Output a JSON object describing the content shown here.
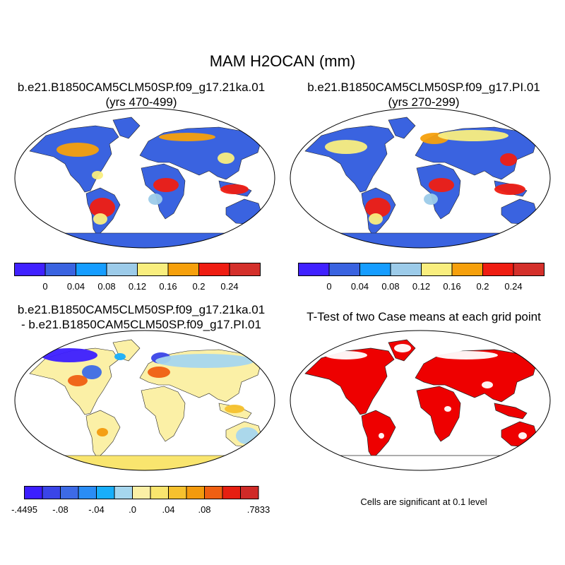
{
  "title": "MAM H2OCAN (mm)",
  "panels": [
    {
      "id": "p1",
      "title": "b.e21.B1850CAM5CLM50SP.f09_g17.21ka.01",
      "subtitle": "(yrs 470-499)"
    },
    {
      "id": "p2",
      "title": "b.e21.B1850CAM5CLM50SP.f09_g17.PI.01",
      "subtitle": "(yrs 270-299)"
    },
    {
      "id": "p3",
      "title": "b.e21.B1850CAM5CLM50SP.f09_g17.21ka.01",
      "subtitle": "- b.e21.B1850CAM5CLM50SP.f09_g17.PI.01"
    },
    {
      "id": "p4",
      "title": "T-Test of two Case means at each grid point",
      "subtitle": ""
    }
  ],
  "colorbar_abs": {
    "colors": [
      "#4021ff",
      "#3a63e0",
      "#169dff",
      "#9ccbe9",
      "#f9ee7e",
      "#f6a00c",
      "#ef1d12",
      "#d4302b"
    ],
    "labels": [
      "0",
      "0.04",
      "0.08",
      "0.12",
      "0.16",
      "0.2",
      "0.24"
    ]
  },
  "colorbar_diff": {
    "colors": [
      "#3c1eff",
      "#3a45e8",
      "#3d6ae6",
      "#2a8df5",
      "#18aefa",
      "#a6d6ee",
      "#fbf0a6",
      "#f9e56e",
      "#f6c12e",
      "#f39a0d",
      "#ef5f12",
      "#e61f11",
      "#cf2a27"
    ],
    "labels": [
      "-.4495",
      "-.08",
      "-.04",
      ".0",
      ".04",
      ".08",
      ".7833"
    ]
  },
  "significance_note": "Cells are significant at 0.1 level",
  "significance_color": "#ee0000",
  "ocean_color": "#ffffff"
}
